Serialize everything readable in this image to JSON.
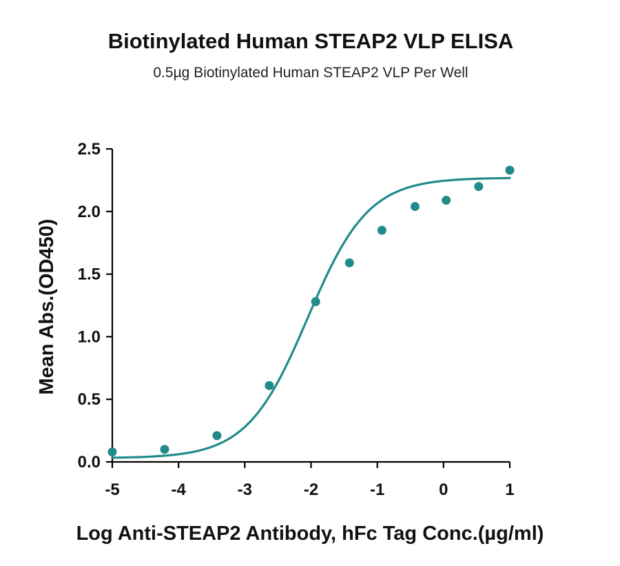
{
  "chart_data": {
    "type": "scatter",
    "title": "Biotinylated Human STEAP2 VLP ELISA",
    "subtitle": "0.5µg Biotinylated Human STEAP2 VLP Per Well",
    "xlabel": "Log Anti-STEAP2 Antibody, hFc Tag Conc.(µg/ml)",
    "ylabel": "Mean Abs.(OD450)",
    "xlim": [
      -5,
      1
    ],
    "ylim": [
      0,
      2.5
    ],
    "x_ticks": [
      "-5",
      "-4",
      "-3",
      "-2",
      "-1",
      "0",
      "1"
    ],
    "y_ticks": [
      "0.0",
      "0.5",
      "1.0",
      "1.5",
      "2.0",
      "2.5"
    ],
    "grid": false,
    "series": [
      {
        "x": [
          -5.0,
          -4.21,
          -3.42,
          -2.63,
          -1.93,
          -1.42,
          -0.93,
          -0.43,
          0.04,
          0.53,
          1.0
        ],
        "y": [
          0.08,
          0.1,
          0.21,
          0.61,
          1.28,
          1.59,
          1.85,
          2.04,
          2.09,
          2.2,
          2.33
        ],
        "fit": {
          "model": "4PL",
          "bottom": 0.03,
          "top": 2.27,
          "logEC50": -2.05,
          "hill": 0.95,
          "x_range": [
            -5.0,
            1.0
          ]
        }
      }
    ],
    "colors": {
      "series": "#218a8a",
      "axis": "#000000",
      "text": "#111111"
    }
  }
}
